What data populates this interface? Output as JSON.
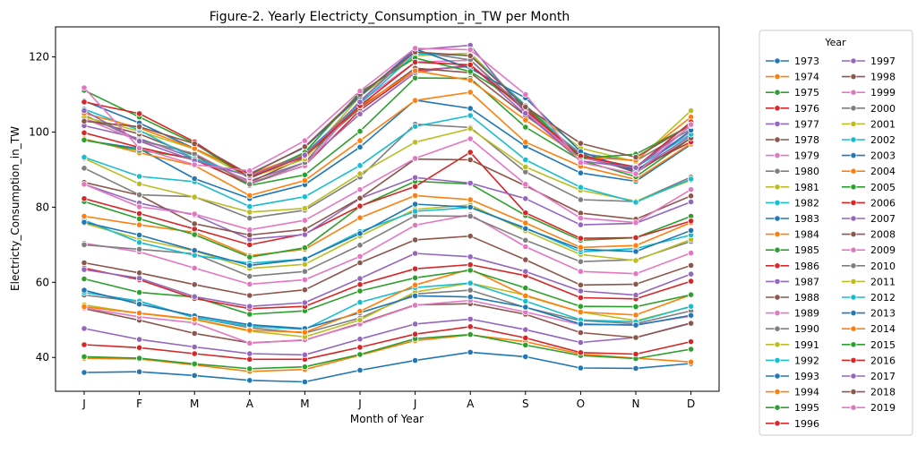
{
  "chart_data": {
    "type": "line",
    "title": "Figure-2. Yearly Electricty_Consumption_in_TW per Month",
    "xlabel": "Month of Year",
    "ylabel": "Electricty_Consumption_in_TW",
    "categories": [
      "J",
      "F",
      "M",
      "A",
      "M",
      "J",
      "J",
      "A",
      "S",
      "O",
      "N",
      "D"
    ],
    "ylim": [
      31,
      128
    ],
    "yticks": [
      40,
      60,
      80,
      100,
      120
    ],
    "grid": false,
    "legend": {
      "title": "Year",
      "placement": "outside-right",
      "columns": 2
    },
    "palette": [
      "#1f77b4",
      "#ff7f0e",
      "#2ca02c",
      "#d62728",
      "#9467bd",
      "#8c564b",
      "#e377c2",
      "#7f7f7f",
      "#bcbd22",
      "#17becf"
    ],
    "series": [
      {
        "name": "1973",
        "values": [
          36.0,
          36.2,
          35.2,
          33.9,
          33.5,
          36.6,
          39.2,
          41.4,
          40.2,
          37.2,
          37.1,
          38.4
        ]
      },
      {
        "name": "1974",
        "values": [
          39.8,
          39.6,
          38.0,
          36.3,
          36.8,
          40.6,
          44.5,
          46.0,
          44.2,
          40.9,
          39.8,
          38.8
        ]
      },
      {
        "name": "1975",
        "values": [
          40.2,
          39.8,
          38.3,
          37.0,
          37.5,
          40.8,
          45.0,
          46.1,
          43.3,
          40.5,
          39.7,
          42.2
        ]
      },
      {
        "name": "1976",
        "values": [
          43.4,
          42.6,
          41.0,
          39.5,
          39.5,
          42.7,
          46.2,
          48.2,
          45.2,
          41.3,
          40.9,
          44.2
        ]
      },
      {
        "name": "1977",
        "values": [
          47.7,
          44.8,
          42.8,
          41.0,
          40.7,
          44.9,
          48.9,
          50.2,
          47.4,
          44.0,
          45.3,
          49.2
        ]
      },
      {
        "name": "1978",
        "values": [
          53.0,
          49.9,
          46.4,
          43.9,
          44.6,
          49.1,
          54.0,
          54.3,
          51.5,
          46.6,
          45.3,
          49.1
        ]
      },
      {
        "name": "1979",
        "values": [
          53.2,
          50.8,
          49.2,
          43.8,
          44.7,
          48.9,
          53.9,
          55.2,
          52.1,
          48.7,
          48.7,
          51.0
        ]
      },
      {
        "name": "1980",
        "values": [
          56.6,
          54.9,
          50.7,
          47.9,
          46.5,
          50.5,
          56.9,
          57.9,
          53.3,
          49.8,
          49.0,
          52.4
        ]
      },
      {
        "name": "1981",
        "values": [
          54.0,
          51.7,
          50.1,
          47.0,
          45.5,
          50.0,
          57.4,
          59.8,
          56.6,
          52.1,
          49.8,
          53.5
        ]
      },
      {
        "name": "1982",
        "values": [
          57.3,
          55.0,
          50.6,
          48.3,
          47.5,
          54.7,
          58.6,
          59.8,
          55.0,
          50.0,
          49.5,
          53.6
        ]
      },
      {
        "name": "1983",
        "values": [
          57.9,
          54.2,
          51.1,
          48.7,
          47.7,
          51.9,
          56.4,
          56.1,
          53.4,
          48.9,
          48.6,
          51.2
        ]
      },
      {
        "name": "1984",
        "values": [
          53.5,
          51.8,
          50.2,
          47.2,
          46.7,
          52.3,
          59.3,
          63.5,
          56.4,
          52.1,
          51.3,
          56.7
        ]
      },
      {
        "name": "1985",
        "values": [
          60.9,
          57.3,
          56.1,
          51.5,
          52.4,
          57.7,
          61.2,
          63.2,
          58.5,
          53.6,
          53.5,
          56.7
        ]
      },
      {
        "name": "1986",
        "values": [
          63.8,
          60.7,
          55.7,
          53.0,
          53.6,
          59.4,
          63.6,
          64.7,
          61.8,
          55.9,
          55.6,
          60.3
        ]
      },
      {
        "name": "1987",
        "values": [
          63.4,
          61.1,
          56.2,
          53.6,
          54.6,
          61.0,
          67.7,
          66.8,
          62.9,
          57.7,
          56.6,
          62.2
        ]
      },
      {
        "name": "1988",
        "values": [
          65.2,
          62.5,
          59.4,
          56.5,
          58.0,
          65.2,
          71.3,
          72.3,
          66.0,
          59.3,
          59.5,
          64.5
        ]
      },
      {
        "name": "1989",
        "values": [
          70.4,
          68.1,
          63.8,
          59.5,
          60.7,
          66.9,
          75.2,
          78.0,
          69.5,
          62.9,
          62.3,
          67.8
        ]
      },
      {
        "name": "1990",
        "values": [
          70.0,
          68.8,
          67.6,
          61.6,
          62.9,
          69.9,
          77.7,
          77.6,
          71.2,
          65.5,
          66.0,
          70.9
        ]
      },
      {
        "name": "1991",
        "values": [
          75.7,
          71.5,
          68.4,
          63.7,
          64.8,
          72.3,
          79.4,
          80.6,
          73.7,
          67.4,
          65.8,
          71.4
        ]
      },
      {
        "name": "1992",
        "values": [
          76.6,
          70.6,
          67.2,
          65.1,
          66.2,
          73.5,
          78.9,
          79.9,
          74.5,
          68.1,
          69.0,
          72.6
        ]
      },
      {
        "name": "1993",
        "values": [
          76.0,
          72.6,
          68.5,
          64.5,
          66.2,
          73.0,
          80.8,
          80.0,
          74.3,
          68.8,
          68.2,
          73.8
        ]
      },
      {
        "name": "1994",
        "values": [
          77.6,
          75.3,
          73.3,
          67.1,
          68.8,
          77.2,
          83.1,
          82.0,
          75.8,
          69.3,
          69.8,
          75.9
        ]
      },
      {
        "name": "1995",
        "values": [
          81.5,
          76.9,
          72.7,
          66.7,
          69.2,
          80.2,
          86.9,
          86.2,
          77.8,
          71.2,
          71.9,
          77.6
        ]
      },
      {
        "name": "1996",
        "values": [
          82.3,
          78.3,
          74.2,
          70.0,
          72.9,
          80.3,
          85.5,
          94.6,
          78.5,
          71.7,
          71.9,
          76.3
        ]
      },
      {
        "name": "1997",
        "values": [
          86.1,
          81.1,
          77.9,
          71.5,
          72.7,
          82.3,
          87.9,
          86.4,
          82.3,
          75.3,
          75.7,
          81.4
        ]
      },
      {
        "name": "1998",
        "values": [
          86.6,
          83.2,
          75.6,
          72.6,
          74.1,
          82.4,
          92.8,
          92.6,
          85.7,
          78.4,
          76.8,
          83.0
        ]
      },
      {
        "name": "1999",
        "values": [
          86.1,
          80.1,
          78.2,
          74.0,
          76.5,
          84.7,
          93.0,
          98.2,
          86.1,
          77.1,
          75.9,
          84.7
        ]
      },
      {
        "name": "2000",
        "values": [
          90.4,
          83.3,
          82.8,
          77.1,
          79.2,
          88.0,
          102.1,
          101.2,
          89.4,
          82.0,
          81.5,
          88.0
        ]
      },
      {
        "name": "2001",
        "values": [
          93.0,
          86.2,
          82.7,
          78.7,
          79.7,
          88.9,
          97.3,
          100.9,
          90.7,
          84.5,
          81.6,
          87.2
        ]
      },
      {
        "name": "2002",
        "values": [
          93.3,
          88.2,
          86.8,
          80.2,
          82.8,
          91.1,
          101.5,
          104.4,
          92.6,
          85.3,
          81.3,
          87.5
        ]
      },
      {
        "name": "2003",
        "values": [
          97.8,
          95.6,
          87.6,
          82.3,
          86.0,
          96.0,
          108.5,
          106.3,
          96.2,
          89.1,
          86.9,
          96.7
        ]
      },
      {
        "name": "2004",
        "values": [
          98.2,
          94.5,
          91.1,
          83.1,
          87.1,
          97.7,
          108.4,
          110.6,
          97.3,
          90.9,
          87.4,
          97.0
        ]
      },
      {
        "name": "2005",
        "values": [
          97.9,
          95.1,
          93.1,
          85.8,
          88.6,
          100.2,
          114.4,
          114.3,
          101.3,
          92.5,
          88.1,
          98.4
        ]
      },
      {
        "name": "2006",
        "values": [
          99.8,
          95.9,
          92.6,
          86.2,
          91.1,
          105.8,
          116.4,
          117.5,
          106.5,
          93.6,
          90.0,
          97.4
        ]
      },
      {
        "name": "2007",
        "values": [
          101.7,
          98.3,
          93.0,
          87.0,
          91.9,
          104.8,
          115.8,
          118.0,
          104.6,
          93.4,
          89.6,
          99.0
        ]
      },
      {
        "name": "2008",
        "values": [
          103.4,
          99.5,
          93.7,
          86.6,
          93.3,
          106.4,
          117.0,
          115.8,
          104.4,
          94.2,
          89.2,
          98.4
        ]
      },
      {
        "name": "2009",
        "values": [
          103.6,
          97.6,
          94.3,
          86.5,
          91.0,
          107.9,
          118.6,
          119.1,
          105.4,
          93.1,
          90.8,
          100.0
        ]
      },
      {
        "name": "2010",
        "values": [
          104.5,
          97.9,
          94.2,
          86.1,
          91.9,
          108.3,
          121.4,
          119.2,
          105.9,
          94.3,
          92.3,
          100.8
        ]
      },
      {
        "name": "2011",
        "values": [
          104.0,
          100.2,
          95.5,
          87.9,
          92.8,
          109.5,
          120.3,
          121.0,
          106.8,
          95.7,
          92.1,
          105.7
        ]
      },
      {
        "name": "2012",
        "values": [
          106.1,
          100.5,
          92.9,
          88.2,
          94.4,
          107.5,
          120.8,
          120.4,
          107.2,
          93.6,
          90.7,
          99.4
        ]
      },
      {
        "name": "2013",
        "values": [
          108.3,
          102.4,
          95.6,
          88.9,
          95.9,
          109.5,
          122.1,
          116.9,
          109.1,
          94.8,
          89.5,
          100.5
        ]
      },
      {
        "name": "2014",
        "values": [
          105.0,
          101.1,
          95.6,
          88.7,
          94.1,
          106.9,
          116.3,
          113.8,
          103.2,
          93.3,
          92.5,
          104.0
        ]
      },
      {
        "name": "2015",
        "values": [
          111.1,
          104.0,
          97.0,
          87.6,
          94.6,
          110.6,
          119.7,
          116.1,
          107.0,
          93.0,
          94.1,
          101.8
        ]
      },
      {
        "name": "2016",
        "values": [
          108.0,
          104.9,
          97.4,
          87.9,
          93.6,
          107.0,
          118.6,
          117.9,
          105.8,
          93.6,
          90.6,
          102.7
        ]
      },
      {
        "name": "2017",
        "values": [
          105.7,
          97.6,
          92.4,
          88.3,
          93.9,
          108.0,
          121.9,
          123.1,
          105.0,
          92.3,
          90.5,
          101.7
        ]
      },
      {
        "name": "2018",
        "values": [
          102.9,
          101.4,
          96.9,
          88.7,
          96.1,
          110.0,
          121.3,
          120.3,
          106.7,
          97.0,
          93.3,
          101.9
        ]
      },
      {
        "name": "2019",
        "values": [
          111.8,
          95.7,
          91.3,
          89.7,
          97.7,
          110.9,
          122.3,
          121.9,
          110.0,
          91.9,
          88.9,
          102.0
        ]
      }
    ]
  }
}
